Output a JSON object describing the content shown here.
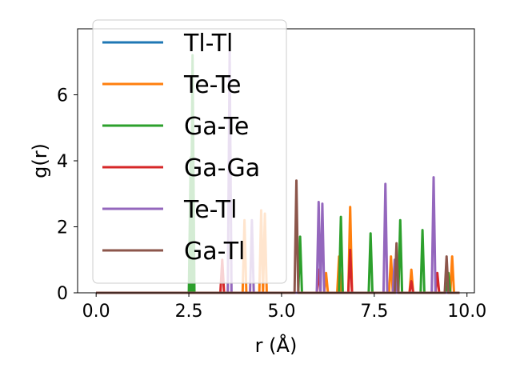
{
  "chart_data": {
    "type": "line",
    "xlabel": "r (Å)",
    "ylabel": "g(r)",
    "xlim": [
      -0.5,
      10.2
    ],
    "ylim": [
      0,
      8
    ],
    "xticks": [
      "0.0",
      "2.5",
      "5.0",
      "7.5",
      "10.0"
    ],
    "yticks": [
      "0",
      "2",
      "4",
      "6"
    ],
    "grid": false,
    "legend_position": "top-left",
    "series": [
      {
        "name": "Tl-Tl",
        "color": "#1f77b4",
        "peaks": []
      },
      {
        "name": "Te-Te",
        "color": "#ff7f0e",
        "peaks": [
          [
            4.0,
            2.2
          ],
          [
            4.45,
            2.5
          ],
          [
            4.55,
            2.4
          ],
          [
            6.2,
            0.6
          ],
          [
            6.55,
            1.1
          ],
          [
            6.85,
            2.6
          ],
          [
            7.95,
            1.1
          ],
          [
            8.5,
            0.7
          ],
          [
            9.6,
            1.1
          ]
        ]
      },
      {
        "name": "Ga-Te",
        "color": "#2ca02c",
        "peaks": [
          [
            2.55,
            4.1
          ],
          [
            2.6,
            7.2
          ],
          [
            5.5,
            1.7
          ],
          [
            6.6,
            2.3
          ],
          [
            7.4,
            1.8
          ],
          [
            8.2,
            2.2
          ],
          [
            8.8,
            1.9
          ],
          [
            9.5,
            0.6
          ]
        ]
      },
      {
        "name": "Ga-Ga",
        "color": "#d62728",
        "peaks": [
          [
            3.4,
            1.0
          ],
          [
            6.0,
            0.7
          ],
          [
            6.85,
            1.3
          ],
          [
            8.1,
            1.2
          ],
          [
            8.5,
            0.35
          ],
          [
            9.2,
            0.6
          ]
        ]
      },
      {
        "name": "Te-Tl",
        "color": "#9467bd",
        "peaks": [
          [
            3.6,
            7.3
          ],
          [
            4.2,
            2.2
          ],
          [
            6.0,
            2.75
          ],
          [
            6.1,
            2.7
          ],
          [
            7.8,
            3.3
          ],
          [
            8.05,
            1.0
          ],
          [
            9.1,
            3.5
          ]
        ]
      },
      {
        "name": "Ga-Tl",
        "color": "#8c564b",
        "peaks": [
          [
            5.4,
            3.4
          ],
          [
            8.1,
            1.5
          ],
          [
            9.45,
            1.1
          ]
        ]
      }
    ]
  }
}
